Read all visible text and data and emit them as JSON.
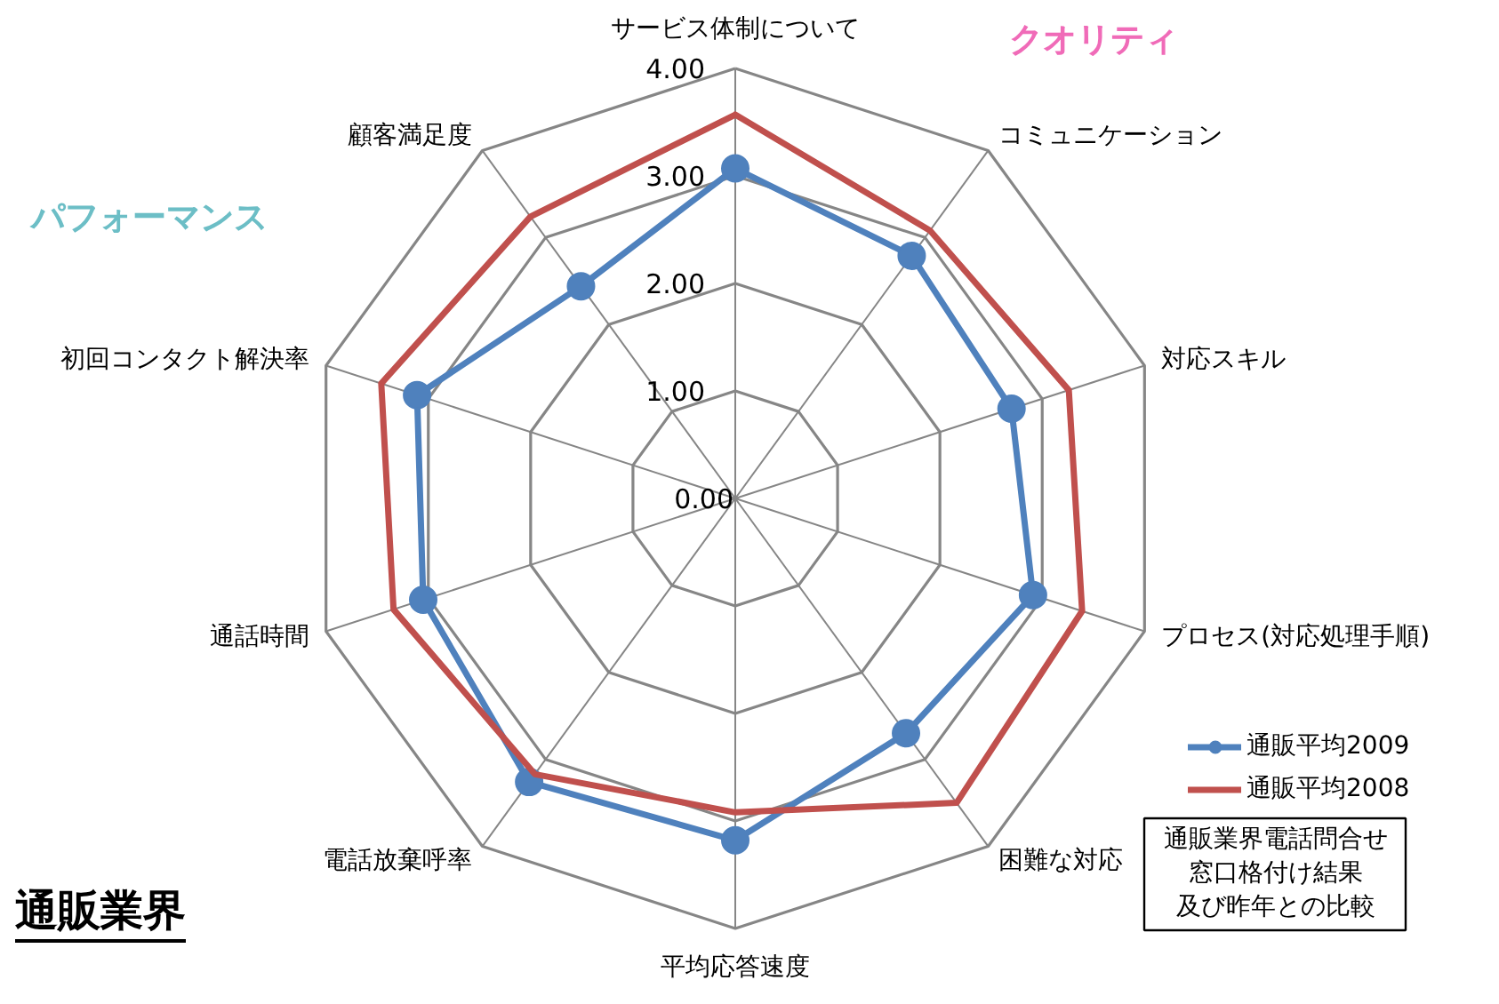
{
  "chart_data": {
    "type": "radar",
    "title": "通販業界",
    "annotations": [
      "クオリティ",
      "パフォーマンス",
      "通販業界電話問合せ窓口格付け結果及び昨年との比較"
    ],
    "categories": [
      "サービス体制について",
      "コミュニケーション",
      "対応スキル",
      "プロセス(対応処理手順)",
      "困難な対応",
      "平均応答速度",
      "電話放棄呼率",
      "通話時間",
      "初回コンタクト解決率",
      "顧客満足度"
    ],
    "series": [
      {
        "name": "通販平均2009",
        "color": "#4f81bd",
        "marker": "circle",
        "values": [
          3.07,
          2.79,
          2.7,
          2.91,
          2.7,
          3.18,
          3.26,
          3.05,
          3.11,
          2.44
        ]
      },
      {
        "name": "通販平均2008",
        "color": "#c0504d",
        "values": [
          3.57,
          3.08,
          3.26,
          3.39,
          3.5,
          2.92,
          3.17,
          3.34,
          3.46,
          3.24
        ]
      }
    ],
    "ylim": [
      0,
      4
    ],
    "yticks": [
      {
        "value": 0,
        "label": "0.00"
      },
      {
        "value": 1,
        "label": "1.00"
      },
      {
        "value": 2,
        "label": "2.00"
      },
      {
        "value": 3,
        "label": "3.00"
      },
      {
        "value": 4,
        "label": "4.00"
      }
    ],
    "grid": true,
    "legend": "bottom right",
    "line_style": "solid"
  }
}
